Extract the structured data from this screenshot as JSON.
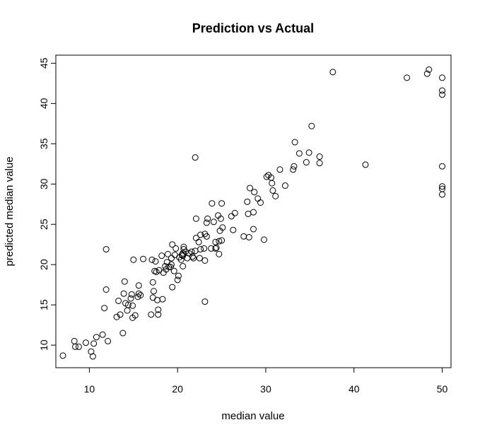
{
  "chart_data": {
    "type": "scatter",
    "title": "Prediction vs Actual",
    "xlabel": "median value",
    "ylabel": "predicted median value",
    "xlim": [
      6.2,
      51.0
    ],
    "ylim": [
      7.2,
      46.0
    ],
    "x_ticks": [
      10,
      20,
      30,
      40,
      50
    ],
    "y_ticks": [
      10,
      15,
      20,
      25,
      30,
      35,
      40,
      45
    ],
    "grid": false,
    "legend": "none",
    "marker": "open-circle",
    "points": [
      [
        7.0,
        8.7
      ],
      [
        8.3,
        10.5
      ],
      [
        8.4,
        9.8
      ],
      [
        8.8,
        9.8
      ],
      [
        9.6,
        10.3
      ],
      [
        10.2,
        9.2
      ],
      [
        10.4,
        8.6
      ],
      [
        10.5,
        10.2
      ],
      [
        10.8,
        11.0
      ],
      [
        11.5,
        11.3
      ],
      [
        11.7,
        14.6
      ],
      [
        11.9,
        16.9
      ],
      [
        11.9,
        21.9
      ],
      [
        12.1,
        10.5
      ],
      [
        13.1,
        13.5
      ],
      [
        13.3,
        15.5
      ],
      [
        13.5,
        13.8
      ],
      [
        13.8,
        11.5
      ],
      [
        13.9,
        16.4
      ],
      [
        14.0,
        17.9
      ],
      [
        14.1,
        15.2
      ],
      [
        14.3,
        14.3
      ],
      [
        14.4,
        15.0
      ],
      [
        14.7,
        15.8
      ],
      [
        14.8,
        16.3
      ],
      [
        14.9,
        14.9
      ],
      [
        14.9,
        13.4
      ],
      [
        15.0,
        20.6
      ],
      [
        15.2,
        13.7
      ],
      [
        15.5,
        16.0
      ],
      [
        15.6,
        17.4
      ],
      [
        15.6,
        16.4
      ],
      [
        15.8,
        16.2
      ],
      [
        16.1,
        20.7
      ],
      [
        17.0,
        13.8
      ],
      [
        17.1,
        20.6
      ],
      [
        17.2,
        15.9
      ],
      [
        17.2,
        17.8
      ],
      [
        17.3,
        16.7
      ],
      [
        17.4,
        19.2
      ],
      [
        17.5,
        20.4
      ],
      [
        17.6,
        19.1
      ],
      [
        17.7,
        15.6
      ],
      [
        17.8,
        14.4
      ],
      [
        17.8,
        13.8
      ],
      [
        17.9,
        19.3
      ],
      [
        18.2,
        21.1
      ],
      [
        18.3,
        15.7
      ],
      [
        18.4,
        19.0
      ],
      [
        18.6,
        19.8
      ],
      [
        18.7,
        19.4
      ],
      [
        18.8,
        20.3
      ],
      [
        18.9,
        21.3
      ],
      [
        19.0,
        19.7
      ],
      [
        19.2,
        19.7
      ],
      [
        19.3,
        20.0
      ],
      [
        19.3,
        20.8
      ],
      [
        19.4,
        17.2
      ],
      [
        19.4,
        22.5
      ],
      [
        19.6,
        19.2
      ],
      [
        19.7,
        21.2
      ],
      [
        19.8,
        22.0
      ],
      [
        20.0,
        18.1
      ],
      [
        20.1,
        18.6
      ],
      [
        20.2,
        20.9
      ],
      [
        20.4,
        20.6
      ],
      [
        20.5,
        21.2
      ],
      [
        20.6,
        19.8
      ],
      [
        20.6,
        21.1
      ],
      [
        20.6,
        21.4
      ],
      [
        20.7,
        21.9
      ],
      [
        20.7,
        22.2
      ],
      [
        20.9,
        21.6
      ],
      [
        21.1,
        20.8
      ],
      [
        21.3,
        21.4
      ],
      [
        21.6,
        21.6
      ],
      [
        21.7,
        21.0
      ],
      [
        21.8,
        20.8
      ],
      [
        22.0,
        33.3
      ],
      [
        22.0,
        21.7
      ],
      [
        22.1,
        23.3
      ],
      [
        22.1,
        25.7
      ],
      [
        22.4,
        22.8
      ],
      [
        22.5,
        20.8
      ],
      [
        22.6,
        23.7
      ],
      [
        22.6,
        21.9
      ],
      [
        23.0,
        22.0
      ],
      [
        23.1,
        23.8
      ],
      [
        23.1,
        20.5
      ],
      [
        23.1,
        15.4
      ],
      [
        23.3,
        25.2
      ],
      [
        23.3,
        23.5
      ],
      [
        23.4,
        25.7
      ],
      [
        23.8,
        22.0
      ],
      [
        23.9,
        27.6
      ],
      [
        24.1,
        25.3
      ],
      [
        24.3,
        22.0
      ],
      [
        24.3,
        22.8
      ],
      [
        24.4,
        22.1
      ],
      [
        24.6,
        26.1
      ],
      [
        24.7,
        22.9
      ],
      [
        24.7,
        21.3
      ],
      [
        24.8,
        24.2
      ],
      [
        24.9,
        25.7
      ],
      [
        25.0,
        23.0
      ],
      [
        25.0,
        27.6
      ],
      [
        25.1,
        24.6
      ],
      [
        26.1,
        26.0
      ],
      [
        26.3,
        24.3
      ],
      [
        26.5,
        26.4
      ],
      [
        27.5,
        23.5
      ],
      [
        27.9,
        27.8
      ],
      [
        28.0,
        26.3
      ],
      [
        28.1,
        23.4
      ],
      [
        28.2,
        29.5
      ],
      [
        28.6,
        24.4
      ],
      [
        28.6,
        26.5
      ],
      [
        28.7,
        29.0
      ],
      [
        29.1,
        28.2
      ],
      [
        29.4,
        27.7
      ],
      [
        29.8,
        23.1
      ],
      [
        30.1,
        30.9
      ],
      [
        30.3,
        31.1
      ],
      [
        30.6,
        30.8
      ],
      [
        30.7,
        30.1
      ],
      [
        30.8,
        29.2
      ],
      [
        31.1,
        28.5
      ],
      [
        31.6,
        31.8
      ],
      [
        32.2,
        29.8
      ],
      [
        33.1,
        31.8
      ],
      [
        33.2,
        32.2
      ],
      [
        33.3,
        35.2
      ],
      [
        33.8,
        33.8
      ],
      [
        34.6,
        32.7
      ],
      [
        34.9,
        33.9
      ],
      [
        35.2,
        37.2
      ],
      [
        36.1,
        33.4
      ],
      [
        36.1,
        32.6
      ],
      [
        37.6,
        43.9
      ],
      [
        41.3,
        32.4
      ],
      [
        46.0,
        43.2
      ],
      [
        48.3,
        43.7
      ],
      [
        48.5,
        44.2
      ],
      [
        50.0,
        43.2
      ],
      [
        50.0,
        41.6
      ],
      [
        50.0,
        41.1
      ],
      [
        50.0,
        32.2
      ],
      [
        50.0,
        29.7
      ],
      [
        50.0,
        29.4
      ],
      [
        50.0,
        28.7
      ]
    ]
  }
}
